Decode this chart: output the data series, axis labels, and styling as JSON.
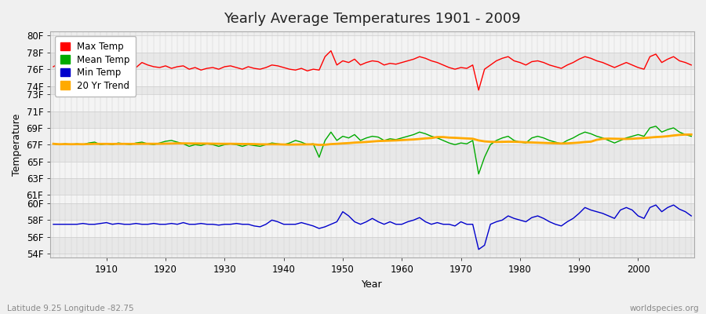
{
  "title": "Yearly Average Temperatures 1901 - 2009",
  "xlabel": "Year",
  "ylabel": "Temperature",
  "years_start": 1901,
  "years_end": 2009,
  "ytick_values": [
    54,
    56,
    58,
    60,
    61,
    63,
    65,
    67,
    69,
    71,
    73,
    74,
    76,
    78,
    80
  ],
  "ylim": [
    53.5,
    80.5
  ],
  "xlim": [
    1900.5,
    2009.5
  ],
  "bg_color": "#f0f0f0",
  "plot_bg": "#eeeeee",
  "grid_color": "#d8d8d8",
  "max_color": "#ff0000",
  "mean_color": "#00aa00",
  "min_color": "#0000cc",
  "trend_color": "#ffaa00",
  "legend_labels": [
    "Max Temp",
    "Mean Temp",
    "Min Temp",
    "20 Yr Trend"
  ],
  "bottom_left_text": "Latitude 9.25 Longitude -82.75",
  "bottom_right_text": "worldspecies.org",
  "max_temps": [
    76.3,
    76.7,
    76.5,
    76.3,
    76.4,
    76.1,
    76.0,
    76.2,
    76.5,
    76.3,
    76.4,
    76.7,
    76.6,
    76.4,
    76.2,
    76.8,
    76.5,
    76.3,
    76.2,
    76.4,
    76.1,
    76.3,
    76.4,
    76.0,
    76.2,
    75.9,
    76.1,
    76.2,
    76.0,
    76.3,
    76.4,
    76.2,
    76.0,
    76.3,
    76.1,
    76.0,
    76.2,
    76.5,
    76.4,
    76.2,
    76.0,
    75.9,
    76.1,
    75.8,
    76.0,
    75.9,
    77.5,
    78.2,
    76.5,
    77.0,
    76.8,
    77.2,
    76.5,
    76.8,
    77.0,
    76.9,
    76.5,
    76.7,
    76.6,
    76.8,
    77.0,
    77.2,
    77.5,
    77.3,
    77.0,
    76.8,
    76.5,
    76.2,
    76.0,
    76.2,
    76.1,
    76.5,
    73.5,
    76.0,
    76.5,
    77.0,
    77.3,
    77.5,
    77.0,
    76.8,
    76.5,
    76.9,
    77.0,
    76.8,
    76.5,
    76.3,
    76.1,
    76.5,
    76.8,
    77.2,
    77.5,
    77.3,
    77.0,
    76.8,
    76.5,
    76.2,
    76.5,
    76.8,
    76.5,
    76.2,
    76.0,
    77.5,
    77.8,
    76.8,
    77.2,
    77.5,
    77.0,
    76.8,
    76.5
  ],
  "mean_temps": [
    67.1,
    67.0,
    67.1,
    67.0,
    67.1,
    67.0,
    67.2,
    67.3,
    67.0,
    67.1,
    67.0,
    67.2,
    67.1,
    67.0,
    67.2,
    67.3,
    67.1,
    67.0,
    67.2,
    67.4,
    67.5,
    67.3,
    67.1,
    66.8,
    67.0,
    66.9,
    67.1,
    67.0,
    66.8,
    67.0,
    67.1,
    67.0,
    66.8,
    67.0,
    66.9,
    66.8,
    67.0,
    67.2,
    67.1,
    67.0,
    67.2,
    67.5,
    67.3,
    67.0,
    67.1,
    65.5,
    67.5,
    68.5,
    67.5,
    68.0,
    67.8,
    68.2,
    67.5,
    67.8,
    68.0,
    67.9,
    67.5,
    67.7,
    67.6,
    67.8,
    68.0,
    68.2,
    68.5,
    68.3,
    68.0,
    67.8,
    67.5,
    67.2,
    67.0,
    67.2,
    67.1,
    67.5,
    63.5,
    65.5,
    67.0,
    67.5,
    67.8,
    68.0,
    67.5,
    67.3,
    67.2,
    67.8,
    68.0,
    67.8,
    67.5,
    67.3,
    67.1,
    67.5,
    67.8,
    68.2,
    68.5,
    68.3,
    68.0,
    67.8,
    67.5,
    67.2,
    67.5,
    67.8,
    68.0,
    68.2,
    68.0,
    69.0,
    69.2,
    68.5,
    68.8,
    69.0,
    68.5,
    68.2,
    68.0
  ],
  "min_temps": [
    57.5,
    57.5,
    57.5,
    57.5,
    57.5,
    57.6,
    57.5,
    57.5,
    57.6,
    57.7,
    57.5,
    57.6,
    57.5,
    57.5,
    57.6,
    57.5,
    57.5,
    57.6,
    57.5,
    57.5,
    57.6,
    57.5,
    57.7,
    57.5,
    57.5,
    57.6,
    57.5,
    57.5,
    57.4,
    57.5,
    57.5,
    57.6,
    57.5,
    57.5,
    57.3,
    57.2,
    57.5,
    58.0,
    57.8,
    57.5,
    57.5,
    57.5,
    57.7,
    57.5,
    57.3,
    57.0,
    57.2,
    57.5,
    57.8,
    59.0,
    58.5,
    57.8,
    57.5,
    57.8,
    58.2,
    57.8,
    57.5,
    57.8,
    57.5,
    57.5,
    57.8,
    58.0,
    58.3,
    57.8,
    57.5,
    57.7,
    57.5,
    57.5,
    57.3,
    57.8,
    57.5,
    57.5,
    54.5,
    55.0,
    57.5,
    57.8,
    58.0,
    58.5,
    58.2,
    58.0,
    57.8,
    58.3,
    58.5,
    58.2,
    57.8,
    57.5,
    57.3,
    57.8,
    58.2,
    58.8,
    59.5,
    59.2,
    59.0,
    58.8,
    58.5,
    58.2,
    59.2,
    59.5,
    59.2,
    58.5,
    58.2,
    59.5,
    59.8,
    59.0,
    59.5,
    59.8,
    59.3,
    59.0,
    58.5
  ]
}
